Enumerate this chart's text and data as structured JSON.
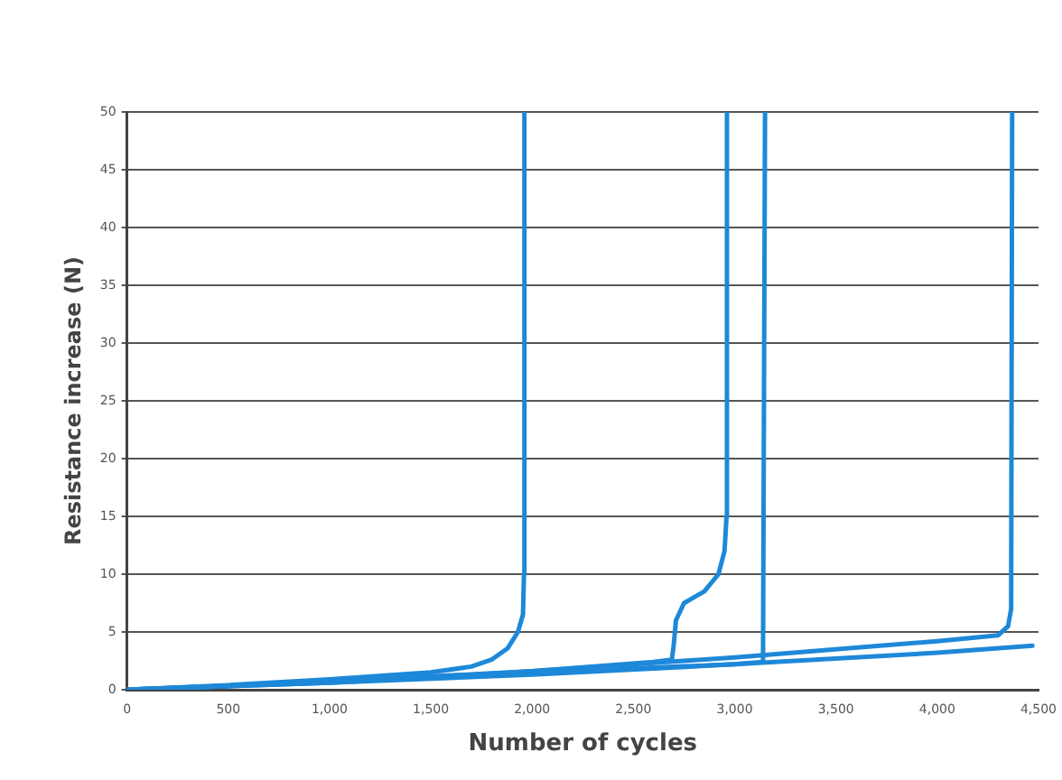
{
  "chart_data": {
    "type": "line",
    "xlabel": "Number of cycles",
    "ylabel": "Resistance increase (N)",
    "xlim": [
      0,
      4500
    ],
    "xticks": [
      0,
      {
        "value": 500,
        "label": "500"
      },
      {
        "value": 1000,
        "label": "1,000"
      },
      {
        "value": 1500,
        "label": "1,500"
      },
      {
        "value": 2000,
        "label": "2,000"
      },
      {
        "value": 2500,
        "label": "2,500"
      },
      {
        "value": 3000,
        "label": "3,000"
      },
      {
        "value": 3500,
        "label": "3,500"
      },
      {
        "value": 4000,
        "label": "4,000"
      },
      {
        "value": 4500,
        "label": "4,500"
      }
    ],
    "ylim": [
      0,
      50
    ],
    "yticks": [
      0,
      5,
      10,
      15,
      20,
      25,
      30,
      35,
      40,
      45,
      50
    ],
    "grid": "y",
    "legend": false,
    "marker": "none",
    "line_style": "solid",
    "series": [
      {
        "color": "#1e88d8",
        "x": [
          0,
          500,
          1000,
          1500,
          1700,
          1800,
          1880,
          1930,
          1955,
          1960,
          1962
        ],
        "values": [
          0,
          0.4,
          0.9,
          1.5,
          2,
          2.6,
          3.6,
          5,
          6.5,
          10,
          50
        ]
      },
      {
        "color": "#1e88d8",
        "x": [
          0,
          1000,
          2000,
          2600,
          2690,
          2700,
          2710,
          2750,
          2850,
          2920,
          2950,
          2960,
          2962
        ],
        "values": [
          0,
          0.7,
          1.6,
          2.4,
          2.6,
          4,
          6,
          7.5,
          8.5,
          10,
          12,
          15,
          50
        ]
      },
      {
        "color": "#1e88d8",
        "x": [
          0,
          1000,
          2000,
          3000,
          3140,
          3150
        ],
        "values": [
          0,
          0.7,
          1.5,
          2.2,
          2.4,
          50
        ]
      },
      {
        "color": "#1e88d8",
        "x": [
          0,
          1000,
          2000,
          3000,
          4000,
          4300,
          4350,
          4365,
          4370
        ],
        "values": [
          0,
          0.6,
          1.6,
          2.8,
          4.2,
          4.7,
          5.5,
          7,
          50
        ]
      },
      {
        "color": "#1e88d8",
        "x": [
          0,
          1000,
          2000,
          3000,
          4000,
          4470
        ],
        "values": [
          0,
          0.6,
          1.3,
          2.2,
          3.2,
          3.8
        ]
      }
    ]
  }
}
